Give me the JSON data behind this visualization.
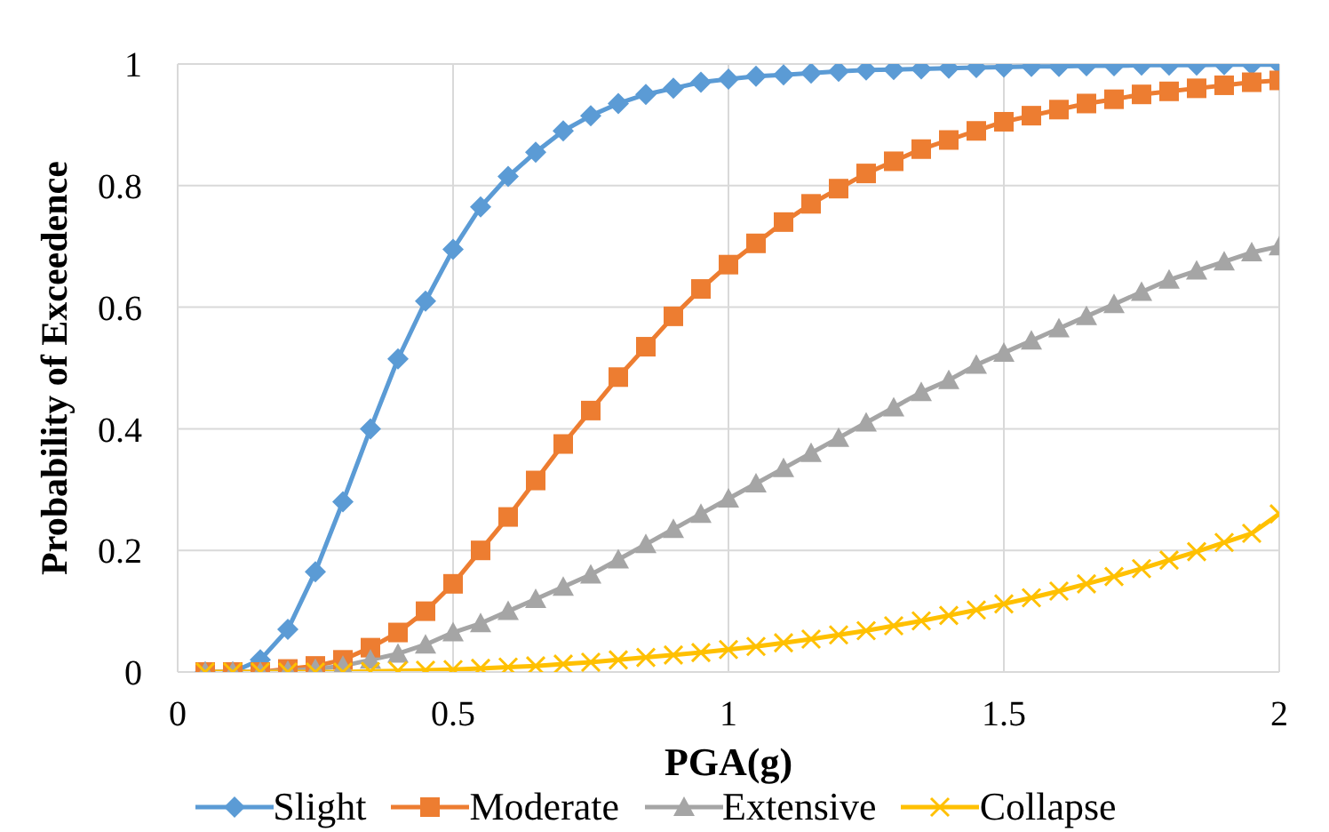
{
  "chart_data": {
    "type": "line",
    "xlabel": "PGA(g)",
    "ylabel": "Probability of Exceedence",
    "x": [
      0.05,
      0.1,
      0.15,
      0.2,
      0.25,
      0.3,
      0.35,
      0.4,
      0.45,
      0.5,
      0.55,
      0.6,
      0.65,
      0.7,
      0.75,
      0.8,
      0.85,
      0.9,
      0.95,
      1.0,
      1.05,
      1.1,
      1.15,
      1.2,
      1.25,
      1.3,
      1.35,
      1.4,
      1.45,
      1.5,
      1.55,
      1.6,
      1.65,
      1.7,
      1.75,
      1.8,
      1.85,
      1.9,
      1.95,
      2.0
    ],
    "series": [
      {
        "name": "Slight",
        "color": "#5b9bd5",
        "marker": "diamond",
        "values": [
          0,
          0,
          0.02,
          0.07,
          0.165,
          0.28,
          0.4,
          0.515,
          0.61,
          0.695,
          0.765,
          0.815,
          0.855,
          0.89,
          0.915,
          0.935,
          0.95,
          0.96,
          0.97,
          0.975,
          0.98,
          0.982,
          0.985,
          0.988,
          0.99,
          0.991,
          0.992,
          0.993,
          0.994,
          0.995,
          0.996,
          0.996,
          0.997,
          0.997,
          0.998,
          0.998,
          0.998,
          0.999,
          0.999,
          0.999
        ]
      },
      {
        "name": "Moderate",
        "color": "#ed7d31",
        "marker": "square",
        "values": [
          0,
          0,
          0,
          0.005,
          0.01,
          0.02,
          0.04,
          0.065,
          0.1,
          0.145,
          0.2,
          0.255,
          0.315,
          0.375,
          0.43,
          0.485,
          0.535,
          0.585,
          0.63,
          0.67,
          0.705,
          0.74,
          0.77,
          0.795,
          0.82,
          0.84,
          0.86,
          0.875,
          0.89,
          0.905,
          0.915,
          0.925,
          0.935,
          0.942,
          0.95,
          0.955,
          0.96,
          0.965,
          0.97,
          0.973
        ]
      },
      {
        "name": "Extensive",
        "color": "#a5a5a5",
        "marker": "triangle",
        "values": [
          0,
          0,
          0,
          0.002,
          0.005,
          0.01,
          0.02,
          0.03,
          0.045,
          0.065,
          0.08,
          0.1,
          0.12,
          0.14,
          0.16,
          0.185,
          0.21,
          0.235,
          0.26,
          0.285,
          0.31,
          0.335,
          0.36,
          0.385,
          0.41,
          0.435,
          0.46,
          0.48,
          0.505,
          0.525,
          0.545,
          0.565,
          0.585,
          0.605,
          0.625,
          0.645,
          0.66,
          0.675,
          0.69,
          0.7
        ]
      },
      {
        "name": "Collapse",
        "color": "#ffc000",
        "marker": "cross",
        "values": [
          0,
          0,
          0,
          0,
          0,
          0,
          0.001,
          0.002,
          0.003,
          0.004,
          0.006,
          0.008,
          0.01,
          0.013,
          0.016,
          0.02,
          0.024,
          0.028,
          0.032,
          0.037,
          0.042,
          0.048,
          0.054,
          0.061,
          0.068,
          0.076,
          0.084,
          0.093,
          0.102,
          0.112,
          0.122,
          0.133,
          0.145,
          0.157,
          0.17,
          0.184,
          0.198,
          0.213,
          0.228,
          0.26
        ]
      }
    ],
    "xlim": [
      0,
      2
    ],
    "xticks": [
      0,
      0.5,
      1,
      1.5,
      2
    ],
    "ylim": [
      0,
      1
    ],
    "yticks": [
      0,
      0.2,
      0.4,
      0.6,
      0.8,
      1
    ],
    "grid": true,
    "legend": "bottom",
    "line_style": "solid"
  }
}
